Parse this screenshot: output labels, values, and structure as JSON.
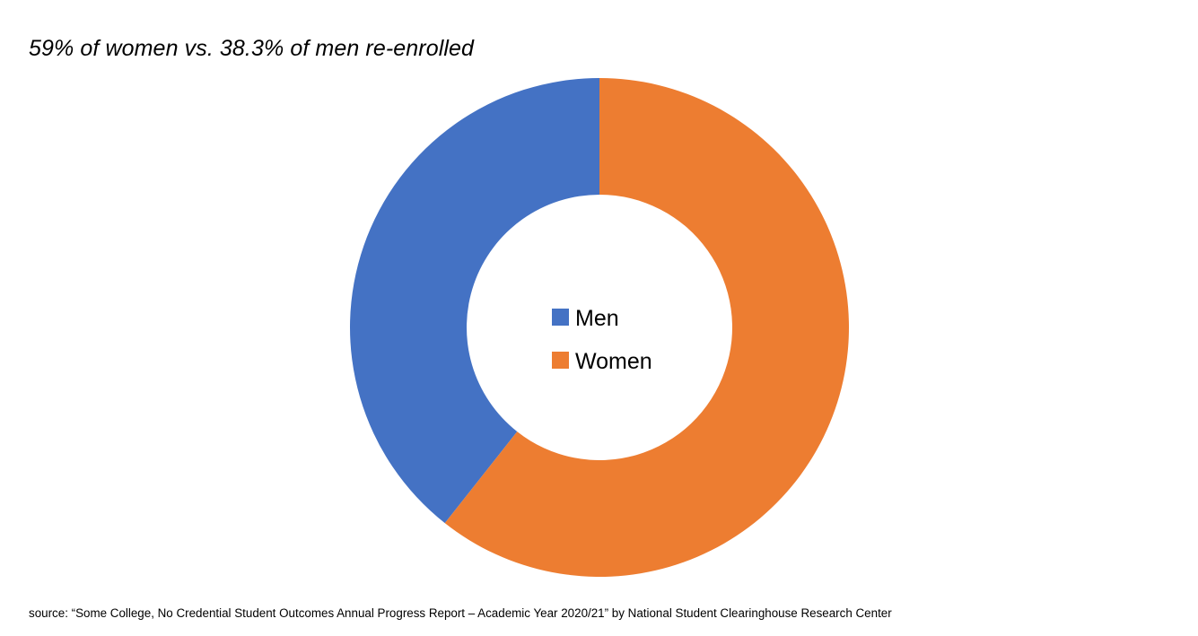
{
  "chart_data": {
    "type": "pie",
    "variant": "donut",
    "title": "59% of women vs. 38.3% of men re-enrolled",
    "categories": [
      "Men",
      "Women"
    ],
    "values": [
      38.3,
      59
    ],
    "colors": [
      "#4472C4",
      "#ED7D31"
    ],
    "legend": {
      "placement": "center",
      "entries": [
        "Men",
        "Women"
      ]
    }
  },
  "source": "source: “Some College, No Credential Student Outcomes Annual Progress Report – Academic Year 2020/21” by National Student Clearinghouse Research Center"
}
